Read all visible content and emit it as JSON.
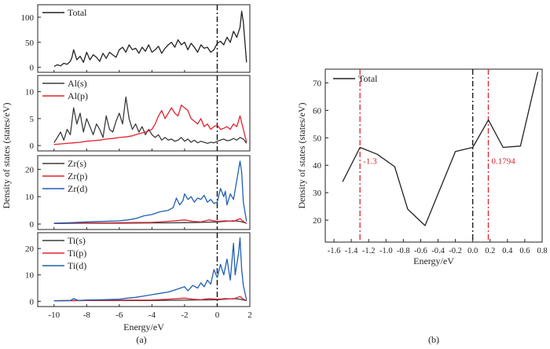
{
  "captions": {
    "a": "(a)",
    "b": "(b)"
  },
  "colors": {
    "black": "#222222",
    "red": "#e0232e",
    "blue": "#1f5fb4",
    "dark": "#3c3c3c",
    "dashblack": "#111111",
    "dashred": "#d8232a"
  },
  "chart_data": [
    {
      "type": "line",
      "id": "a",
      "ylabel": "Density of states (states/eV)",
      "xlabel": "Energy/eV",
      "xlim": [
        -11,
        2
      ],
      "xticks": [
        -10,
        -8,
        -6,
        -4,
        -2,
        0,
        2
      ],
      "fermi_line_x": 0,
      "panels": [
        {
          "ylim": [
            -10,
            125
          ],
          "yticks": [
            0,
            50,
            100
          ],
          "series": [
            {
              "name": "Total",
              "color": "#222222",
              "x": [
                -10,
                -9.8,
                -9.6,
                -9.4,
                -9.2,
                -9.0,
                -8.9,
                -8.8,
                -8.6,
                -8.4,
                -8.2,
                -8.0,
                -7.8,
                -7.6,
                -7.4,
                -7.2,
                -7.0,
                -6.8,
                -6.6,
                -6.4,
                -6.2,
                -6.0,
                -5.8,
                -5.6,
                -5.4,
                -5.2,
                -5.0,
                -4.8,
                -4.6,
                -4.4,
                -4.2,
                -4.0,
                -3.8,
                -3.6,
                -3.4,
                -3.2,
                -3.0,
                -2.8,
                -2.6,
                -2.4,
                -2.2,
                -2.0,
                -1.8,
                -1.6,
                -1.4,
                -1.2,
                -1.0,
                -0.8,
                -0.6,
                -0.4,
                -0.2,
                0.0,
                0.2,
                0.4,
                0.6,
                0.8,
                1.0,
                1.2,
                1.4,
                1.5,
                1.6,
                1.8
              ],
              "y": [
                2,
                5,
                3,
                8,
                6,
                12,
                20,
                35,
                15,
                22,
                10,
                30,
                15,
                25,
                20,
                12,
                28,
                18,
                30,
                25,
                20,
                35,
                40,
                30,
                45,
                35,
                38,
                28,
                40,
                32,
                45,
                30,
                35,
                42,
                28,
                38,
                45,
                50,
                40,
                55,
                45,
                50,
                35,
                48,
                40,
                30,
                45,
                38,
                40,
                30,
                35,
                48,
                52,
                45,
                60,
                50,
                72,
                60,
                80,
                112,
                90,
                10
              ]
            }
          ]
        },
        {
          "ylim": [
            -1,
            13
          ],
          "yticks": [
            0,
            5,
            10
          ],
          "series": [
            {
              "name": "Al(s)",
              "color": "#3c3c3c",
              "x": [
                -10,
                -9.8,
                -9.6,
                -9.4,
                -9.2,
                -9.0,
                -8.8,
                -8.6,
                -8.4,
                -8.2,
                -8.0,
                -7.8,
                -7.6,
                -7.4,
                -7.2,
                -7.0,
                -6.8,
                -6.6,
                -6.4,
                -6.2,
                -6.0,
                -5.8,
                -5.6,
                -5.4,
                -5.2,
                -5.0,
                -4.8,
                -4.6,
                -4.4,
                -4.2,
                -4.0,
                -3.8,
                -3.6,
                -3.4,
                -3.2,
                -3.0,
                -2.8,
                -2.6,
                -2.4,
                -2.2,
                -2.0,
                -1.8,
                -1.6,
                -1.4,
                -1.2,
                -1.0,
                -0.8,
                -0.6,
                -0.4,
                -0.2,
                0.0,
                0.2,
                0.4,
                0.6,
                0.8,
                1.0,
                1.2,
                1.4,
                1.6,
                1.8
              ],
              "y": [
                0.5,
                1.5,
                2.5,
                1.0,
                3.0,
                2.0,
                7.0,
                4.0,
                6.0,
                2.5,
                5.0,
                3.5,
                2.0,
                4.0,
                3.0,
                1.5,
                5.5,
                3.0,
                2.5,
                4.5,
                6.0,
                4.0,
                9.0,
                5.0,
                3.0,
                4.0,
                2.5,
                3.5,
                2.0,
                3.0,
                2.0,
                1.5,
                2.0,
                1.0,
                1.5,
                1.0,
                1.2,
                0.8,
                1.0,
                1.5,
                0.8,
                1.2,
                0.6,
                1.0,
                0.5,
                0.8,
                0.6,
                0.4,
                0.6,
                0.5,
                0.8,
                1.0,
                1.2,
                0.9,
                1.0,
                1.3,
                1.0,
                1.5,
                1.2,
                0.4
              ]
            },
            {
              "name": "Al(p)",
              "color": "#e0232e",
              "x": [
                -10,
                -9.6,
                -9.2,
                -8.8,
                -8.4,
                -8.0,
                -7.6,
                -7.2,
                -6.8,
                -6.4,
                -6.0,
                -5.6,
                -5.2,
                -4.8,
                -4.4,
                -4.0,
                -3.8,
                -3.6,
                -3.4,
                -3.2,
                -3.0,
                -2.8,
                -2.6,
                -2.4,
                -2.2,
                -2.0,
                -1.8,
                -1.6,
                -1.4,
                -1.2,
                -1.0,
                -0.8,
                -0.6,
                -0.4,
                -0.2,
                0.0,
                0.2,
                0.4,
                0.6,
                0.8,
                1.0,
                1.2,
                1.4,
                1.6,
                1.8
              ],
              "y": [
                0.2,
                0.3,
                0.4,
                0.5,
                0.6,
                0.8,
                0.9,
                1.0,
                1.2,
                1.3,
                1.5,
                1.6,
                1.8,
                2.2,
                2.5,
                3.0,
                4.0,
                5.5,
                6.5,
                5.0,
                6.0,
                7.0,
                6.0,
                5.5,
                7.5,
                7.0,
                6.5,
                5.0,
                4.5,
                4.0,
                5.0,
                3.5,
                4.0,
                3.0,
                3.5,
                3.8,
                3.0,
                3.2,
                3.5,
                3.0,
                4.0,
                3.5,
                5.5,
                3.0,
                0.6
              ]
            }
          ]
        },
        {
          "ylim": [
            -2,
            25
          ],
          "yticks": [
            0,
            10,
            20
          ],
          "series": [
            {
              "name": "Zr(s)",
              "color": "#3c3c3c",
              "x": [
                -10,
                -8,
                -6,
                -4,
                -2,
                -1,
                0,
                0.5,
                1,
                1.4,
                1.8
              ],
              "y": [
                0.2,
                0.3,
                0.3,
                0.4,
                0.5,
                0.6,
                0.8,
                1.0,
                1.2,
                1.0,
                0.3
              ]
            },
            {
              "name": "Zr(p)",
              "color": "#e0232e",
              "x": [
                -10,
                -8,
                -6,
                -4,
                -3,
                -2,
                -1.5,
                -1,
                -0.5,
                0,
                0.5,
                1,
                1.4,
                1.6,
                1.8
              ],
              "y": [
                0.3,
                0.4,
                0.5,
                0.6,
                1.0,
                1.5,
                1.0,
                0.8,
                1.5,
                1.0,
                1.2,
                1.0,
                2.0,
                1.0,
                0.2
              ]
            },
            {
              "name": "Zr(d)",
              "color": "#1f5fb4",
              "x": [
                -10,
                -9,
                -8,
                -7,
                -6,
                -5.5,
                -5,
                -4.5,
                -4,
                -3.5,
                -3,
                -2.7,
                -2.5,
                -2.3,
                -2.1,
                -2.0,
                -1.8,
                -1.6,
                -1.4,
                -1.2,
                -1.0,
                -0.8,
                -0.6,
                -0.4,
                -0.2,
                0.0,
                0.2,
                0.4,
                0.5,
                0.6,
                0.8,
                1.0,
                1.2,
                1.4,
                1.5,
                1.6,
                1.8
              ],
              "y": [
                0.3,
                0.5,
                0.8,
                1.0,
                1.2,
                1.5,
                2.0,
                3.0,
                3.5,
                4.5,
                5.0,
                6.0,
                9.5,
                7.0,
                8.5,
                11.0,
                9.0,
                10.0,
                8.0,
                9.5,
                9.0,
                10.5,
                8.0,
                9.0,
                7.5,
                8.0,
                13.0,
                10.0,
                12.0,
                7.0,
                11.0,
                9.0,
                16.0,
                23.0,
                19.0,
                8.0,
                1.0
              ]
            }
          ]
        },
        {
          "ylim": [
            -2,
            26
          ],
          "yticks": [
            0,
            10,
            20
          ],
          "series": [
            {
              "name": "Ti(s)",
              "color": "#3c3c3c",
              "x": [
                -10,
                -8,
                -6,
                -4,
                -2,
                -1,
                0,
                0.5,
                1,
                1.4,
                1.8
              ],
              "y": [
                0.2,
                0.3,
                0.3,
                0.3,
                0.4,
                0.5,
                0.6,
                0.8,
                1.0,
                0.8,
                0.2
              ]
            },
            {
              "name": "Ti(p)",
              "color": "#e0232e",
              "x": [
                -10,
                -8,
                -6,
                -4,
                -3,
                -2,
                -1.5,
                -1,
                -0.5,
                0,
                0.5,
                1,
                1.4,
                1.6,
                1.8
              ],
              "y": [
                0.2,
                0.3,
                0.4,
                0.5,
                0.8,
                1.2,
                0.8,
                0.6,
                1.0,
                0.8,
                1.0,
                0.9,
                1.8,
                0.8,
                0.2
              ]
            },
            {
              "name": "Ti(d)",
              "color": "#1f5fb4",
              "x": [
                -10,
                -9,
                -8.8,
                -8.5,
                -8,
                -7,
                -6,
                -5.5,
                -5,
                -4.5,
                -4,
                -3.5,
                -3,
                -2.5,
                -2,
                -1.8,
                -1.5,
                -1.2,
                -1,
                -0.8,
                -0.6,
                -0.4,
                -0.2,
                0,
                0.2,
                0.4,
                0.6,
                0.8,
                1.0,
                1.1,
                1.2,
                1.3,
                1.4,
                1.5,
                1.6,
                1.8
              ],
              "y": [
                0.2,
                0.3,
                1.0,
                0.3,
                0.5,
                0.6,
                0.8,
                1.2,
                1.5,
                2.0,
                2.5,
                3.0,
                3.5,
                4.5,
                5.5,
                4.0,
                6.0,
                5.0,
                7.0,
                5.5,
                8.0,
                6.5,
                12.0,
                9.0,
                14.0,
                10.0,
                16.0,
                8.0,
                22.0,
                10.0,
                14.0,
                18.0,
                24.0,
                12.0,
                6.0,
                0.5
              ]
            }
          ]
        }
      ]
    },
    {
      "type": "line",
      "id": "b",
      "xlabel": "Energy/eV",
      "ylabel": "Density of states (states/eV)",
      "xlim": [
        -1.7,
        0.8
      ],
      "ylim": [
        12,
        75
      ],
      "xticks": [
        -1.6,
        -1.4,
        -1.2,
        -1.0,
        -0.8,
        -0.6,
        -0.4,
        -0.2,
        0.0,
        0.2,
        0.4,
        0.6,
        0.8
      ],
      "xtick_labels": [
        "-1.6",
        "-1.4",
        "-1.2",
        "-1.0",
        "-0.8",
        "-0.6",
        "-0.4",
        "-0.2",
        "0.0",
        "0.2",
        "0.4",
        "0.6",
        "0.8"
      ],
      "yticks": [
        20,
        30,
        40,
        50,
        60,
        70
      ],
      "series": [
        {
          "name": "Total",
          "color": "#222222",
          "x": [
            -1.5,
            -1.3,
            -1.1,
            -0.9,
            -0.75,
            -0.55,
            -0.2,
            0.0,
            0.18,
            0.35,
            0.55,
            0.75
          ],
          "y": [
            34,
            46.5,
            44,
            39.5,
            24,
            18,
            45,
            46.5,
            56.5,
            46.5,
            47,
            74
          ]
        }
      ],
      "vlines": [
        {
          "x": -1.3,
          "color": "#d8232a",
          "style": "dashdot",
          "label": "-1.3"
        },
        {
          "x": 0.0,
          "color": "#111111",
          "style": "dashdot"
        },
        {
          "x": 0.1794,
          "color": "#d8232a",
          "style": "dashdot",
          "label": "0.1794"
        }
      ]
    }
  ]
}
